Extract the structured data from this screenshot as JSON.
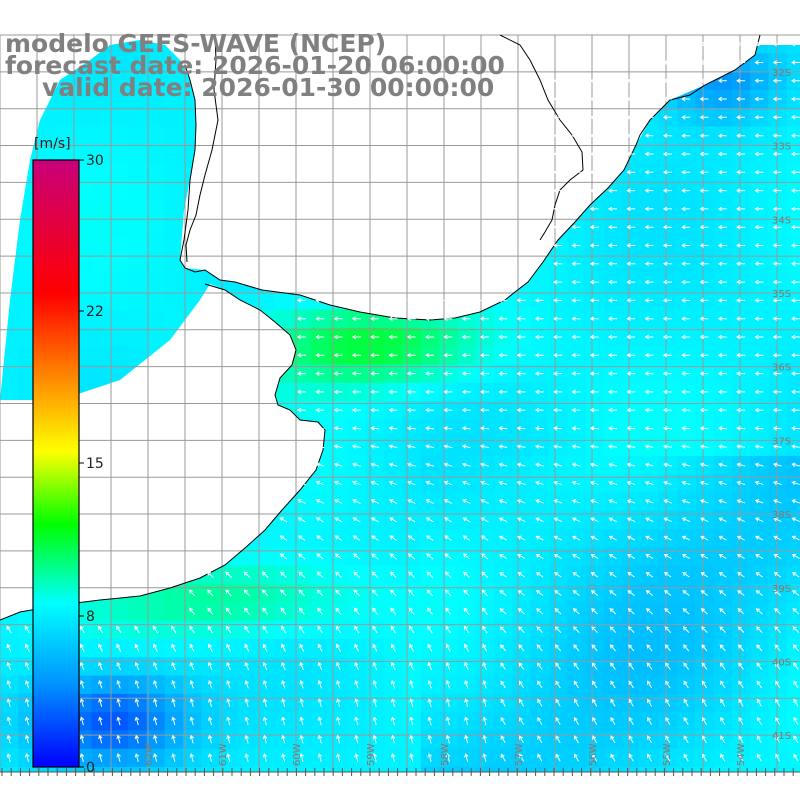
{
  "header": {
    "line1": "modelo GEFS-WAVE (NCEP)",
    "line2": "forecast date: 2026-01-20 06:00:00",
    "line3": "valid date: 2026-01-30 00:00:00"
  },
  "colorbar": {
    "unit": "[m/s]",
    "ticks": [
      {
        "label": "30",
        "value": 30
      },
      {
        "label": "22",
        "value": 22
      },
      {
        "label": "15",
        "value": 15
      },
      {
        "label": "8",
        "value": 8
      },
      {
        "label": "0",
        "value": 0
      }
    ],
    "colors": [
      "#0000ff",
      "#0096ff",
      "#00ffff",
      "#00ff00",
      "#ffff00",
      "#ff8000",
      "#ff0000",
      "#c8007a"
    ]
  },
  "lat_labels": [
    {
      "label": "32S",
      "lat": -32
    },
    {
      "label": "33S",
      "lat": -33
    },
    {
      "label": "34S",
      "lat": -34
    },
    {
      "label": "35S",
      "lat": -35
    },
    {
      "label": "36S",
      "lat": -36
    },
    {
      "label": "37S",
      "lat": -37
    },
    {
      "label": "38S",
      "lat": -38
    },
    {
      "label": "39S",
      "lat": -39
    },
    {
      "label": "40S",
      "lat": -40
    },
    {
      "label": "41S",
      "lat": -41
    }
  ],
  "lon_labels": [
    {
      "label": "63W",
      "lon": -63
    },
    {
      "label": "62W",
      "lon": -62
    },
    {
      "label": "61W",
      "lon": -61
    },
    {
      "label": "60W",
      "lon": -60
    },
    {
      "label": "59W",
      "lon": -59
    },
    {
      "label": "58W",
      "lon": -58
    },
    {
      "label": "57W",
      "lon": -57
    },
    {
      "label": "56W",
      "lon": -56
    },
    {
      "label": "55W",
      "lon": -55
    },
    {
      "label": "54W",
      "lon": -54
    },
    {
      "label": "53W",
      "lon": -53
    }
  ],
  "map": {
    "field": "wind speed",
    "units": "m/s",
    "value_range": [
      0,
      30
    ],
    "land_color": "#ffffff",
    "grid_color": "#999999",
    "coast_color": "#000000",
    "arrow_color": "#ffffff"
  }
}
